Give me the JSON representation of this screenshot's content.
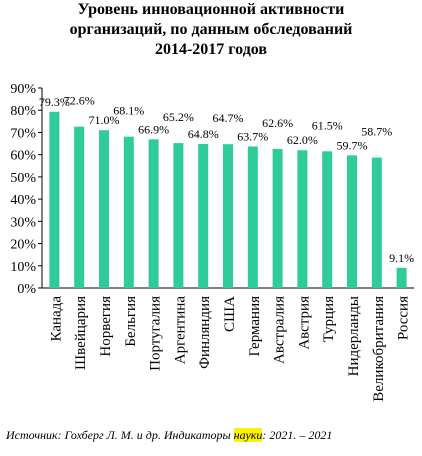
{
  "chart_data": {
    "type": "bar",
    "title": [
      "Уровень инновационной активности",
      "организаций, по данным обследований",
      "2014-2017 годов"
    ],
    "categories": [
      "Канада",
      "Швейцария",
      "Норвегия",
      "Бельгия",
      "Португалия",
      "Аргентина",
      "Финляндия",
      "США",
      "Германия",
      "Австралия",
      "Австрия",
      "Турция",
      "Нидерланды",
      "Великобритания",
      "Россия"
    ],
    "values": [
      79.3,
      72.6,
      71.0,
      68.1,
      66.9,
      65.2,
      64.8,
      64.7,
      63.7,
      62.6,
      62.0,
      61.5,
      59.7,
      58.7,
      9.1
    ],
    "value_labels": [
      "79.3%",
      "72.6%",
      "71.0%",
      "68.1%",
      "66.9%",
      "65.2%",
      "64.8%",
      "64.7%",
      "63.7%",
      "62.6%",
      "62.0%",
      "61.5%",
      "59.7%",
      "58.7%",
      "9.1%"
    ],
    "ylim": [
      0,
      90
    ],
    "yticks": [
      "0%",
      "10%",
      "20%",
      "30%",
      "40%",
      "50%",
      "60%",
      "70%",
      "80%",
      "90%"
    ],
    "grid": false,
    "legend": "none",
    "bar_color": "#2ecc9a"
  },
  "source": {
    "prefix": "Источник: Гохберг Л. М. и др. Индикаторы ",
    "highlight": "науки",
    "suffix": ": 2021. – 2021"
  }
}
